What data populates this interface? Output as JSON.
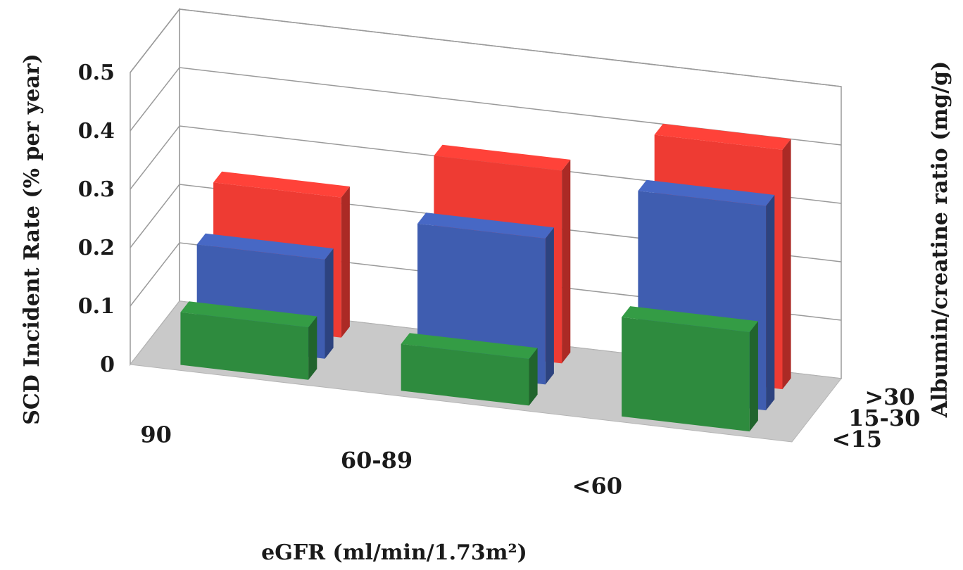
{
  "chart_data": {
    "type": "bar3d",
    "x_categories": [
      "90",
      "60-89",
      "<60"
    ],
    "depth_categories": [
      "<15",
      "15-30",
      ">30"
    ],
    "ylim": [
      0,
      0.5
    ],
    "yticks": [
      "0",
      "0.1",
      "0.2",
      "0.3",
      "0.4",
      "0.5"
    ],
    "ylabel": "SCD Incident Rate (% per year)",
    "xlabel": "eGFR (ml/min/1.73m²)",
    "zlabel": "Albumin/creatine ratio (mg/g)",
    "grid": true,
    "series": [
      {
        "name": "<15",
        "color": "#2e8b3e",
        "values": [
          0.09,
          0.08,
          0.17
        ]
      },
      {
        "name": "15-30",
        "color": "#3f5db0",
        "values": [
          0.17,
          0.25,
          0.35
        ]
      },
      {
        "name": ">30",
        "color": "#ee3b33",
        "values": [
          0.24,
          0.33,
          0.41
        ]
      }
    ]
  }
}
